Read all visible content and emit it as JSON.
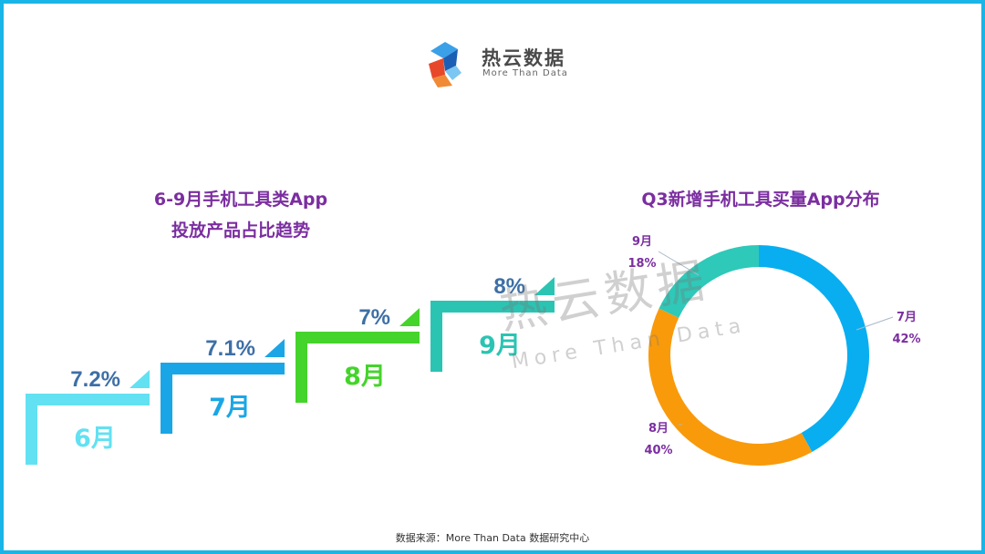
{
  "brand": {
    "name": "热云数据",
    "tagline": "More Than Data"
  },
  "watermark": {
    "name": "热云数据",
    "tagline": "More Than Data"
  },
  "footer": {
    "source": "数据来源：More  Than  Data  数据研究中心"
  },
  "colors": {
    "frame": "#19b5e6",
    "title": "#7b2ea0",
    "value_text": "#3d6fa6"
  },
  "chart_data": [
    {
      "type": "bar",
      "title_lines": [
        "6-9月手机工具类App",
        "投放产品占比趋势"
      ],
      "categories": [
        "6月",
        "7月",
        "8月",
        "9月"
      ],
      "values": [
        7.2,
        7.1,
        7,
        8
      ],
      "value_labels": [
        "7.2%",
        "7.1%",
        "7%",
        "8%"
      ],
      "unit": "%",
      "colors": [
        "#62e1f2",
        "#1aa6e6",
        "#44d42b",
        "#2bc4b3"
      ]
    },
    {
      "type": "pie",
      "variant": "donut",
      "title": "Q3新增手机工具买量App分布",
      "slices": [
        {
          "label": "7月",
          "value": 42,
          "value_label": "42%",
          "color": "#08aef0"
        },
        {
          "label": "8月",
          "value": 40,
          "value_label": "40%",
          "color": "#f99a0b"
        },
        {
          "label": "9月",
          "value": 18,
          "value_label": "18%",
          "color": "#2ec9b8"
        }
      ]
    }
  ]
}
